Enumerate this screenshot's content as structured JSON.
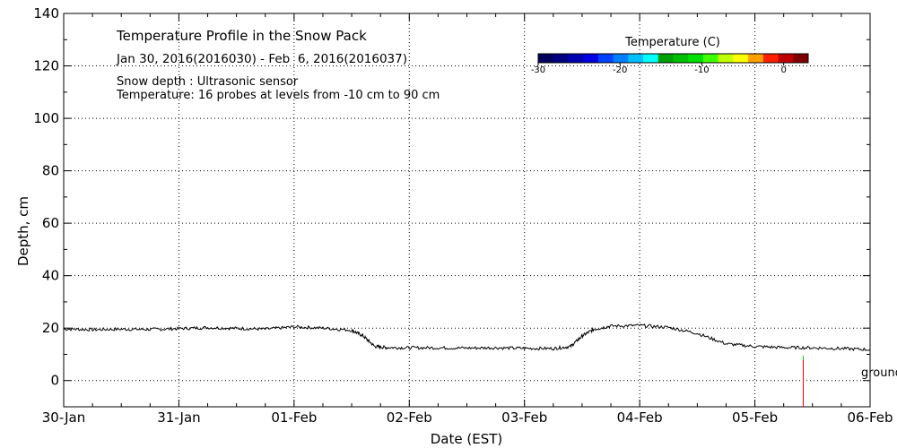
{
  "chart_data": {
    "type": "line",
    "title": "Temperature Profile in the Snow Pack",
    "subtitle": "Jan 30, 2016(2016030) - Feb  6, 2016(2016037)",
    "notes": [
      "Snow depth : Ultrasonic sensor",
      "Temperature: 16 probes at levels from -10 cm to 90 cm"
    ],
    "xlabel": "Date (EST)",
    "ylabel": "Depth, cm",
    "x_tick_labels": [
      "30-Jan",
      "31-Jan",
      "01-Feb",
      "02-Feb",
      "03-Feb",
      "04-Feb",
      "05-Feb",
      "06-Feb"
    ],
    "xlim": [
      0,
      7
    ],
    "ylim": [
      -10,
      140
    ],
    "y_ticks": [
      0,
      20,
      40,
      60,
      80,
      100,
      120,
      140
    ],
    "grid": true,
    "series": [
      {
        "color": "#000000",
        "x": [
          0,
          0.25,
          0.5,
          0.75,
          1.0,
          1.25,
          1.5,
          1.75,
          2.0,
          2.25,
          2.5,
          2.6,
          2.7,
          2.8,
          3.0,
          3.25,
          3.5,
          3.75,
          4.0,
          4.25,
          4.4,
          4.5,
          4.6,
          4.75,
          5.0,
          5.25,
          5.5,
          5.75,
          6.0,
          6.25,
          6.5,
          6.75,
          7.0
        ],
        "y": [
          19.7,
          19.4,
          19.6,
          19.5,
          19.8,
          20.2,
          19.9,
          19.6,
          20.5,
          20.0,
          19.2,
          17.0,
          13.0,
          12.6,
          12.5,
          12.5,
          12.4,
          12.5,
          12.3,
          12.2,
          13.0,
          17.0,
          19.5,
          20.8,
          21.0,
          20.3,
          18.0,
          14.0,
          13.0,
          12.6,
          12.5,
          12.2,
          11.8
        ]
      }
    ],
    "marker": {
      "x": 6.42,
      "y_top": 9.5,
      "y_bottom": -10,
      "color": "#ff0000",
      "tip_color": "#00cc00"
    },
    "ground_label": "ground",
    "colorbar": {
      "title": "Temperature (C)",
      "range": [
        -30,
        3
      ],
      "tick_labels": [
        "-30",
        "-20",
        "-10",
        "0"
      ],
      "tick_values": [
        -30,
        -20,
        -10,
        0
      ],
      "colors": [
        "#00005a",
        "#000080",
        "#0000b0",
        "#0000e0",
        "#0040ff",
        "#0080ff",
        "#00c0ff",
        "#00ffff",
        "#00a000",
        "#00c000",
        "#00e000",
        "#40ff00",
        "#c0ff00",
        "#ffff00",
        "#ffa000",
        "#ff2000",
        "#c00000",
        "#800000"
      ]
    }
  }
}
